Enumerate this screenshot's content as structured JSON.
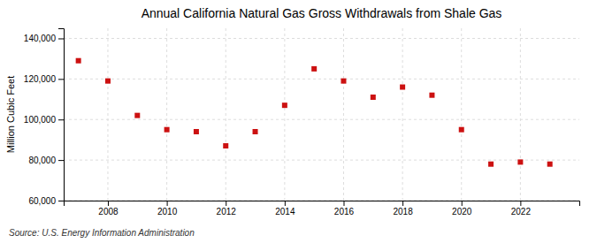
{
  "chart_data": {
    "type": "scatter",
    "title": "Annual California Natural Gas Gross Withdrawals from Shale Gas",
    "ylabel": "Million Cubic Feet",
    "source": "Source: U.S. Energy Information Administration",
    "x": [
      2007,
      2008,
      2009,
      2010,
      2011,
      2012,
      2013,
      2014,
      2015,
      2016,
      2017,
      2018,
      2019,
      2020,
      2021,
      2022,
      2023
    ],
    "values": [
      129000,
      119000,
      102000,
      95000,
      94000,
      87000,
      94000,
      107000,
      125000,
      119000,
      111000,
      116000,
      112000,
      95000,
      78000,
      79000,
      78000
    ],
    "color": "#cc1111",
    "marker": "square",
    "xlim": [
      2006.5,
      2024
    ],
    "xticks": [
      2008,
      2010,
      2012,
      2014,
      2016,
      2018,
      2020,
      2022
    ],
    "ylim": [
      60000,
      145000
    ],
    "yticks": [
      {
        "value": 60000,
        "label": "60,000"
      },
      {
        "value": 80000,
        "label": "80,000"
      },
      {
        "value": 100000,
        "label": "100,000"
      },
      {
        "value": 120000,
        "label": "120,000"
      },
      {
        "value": 140000,
        "label": "140,000"
      }
    ],
    "grid": true
  }
}
